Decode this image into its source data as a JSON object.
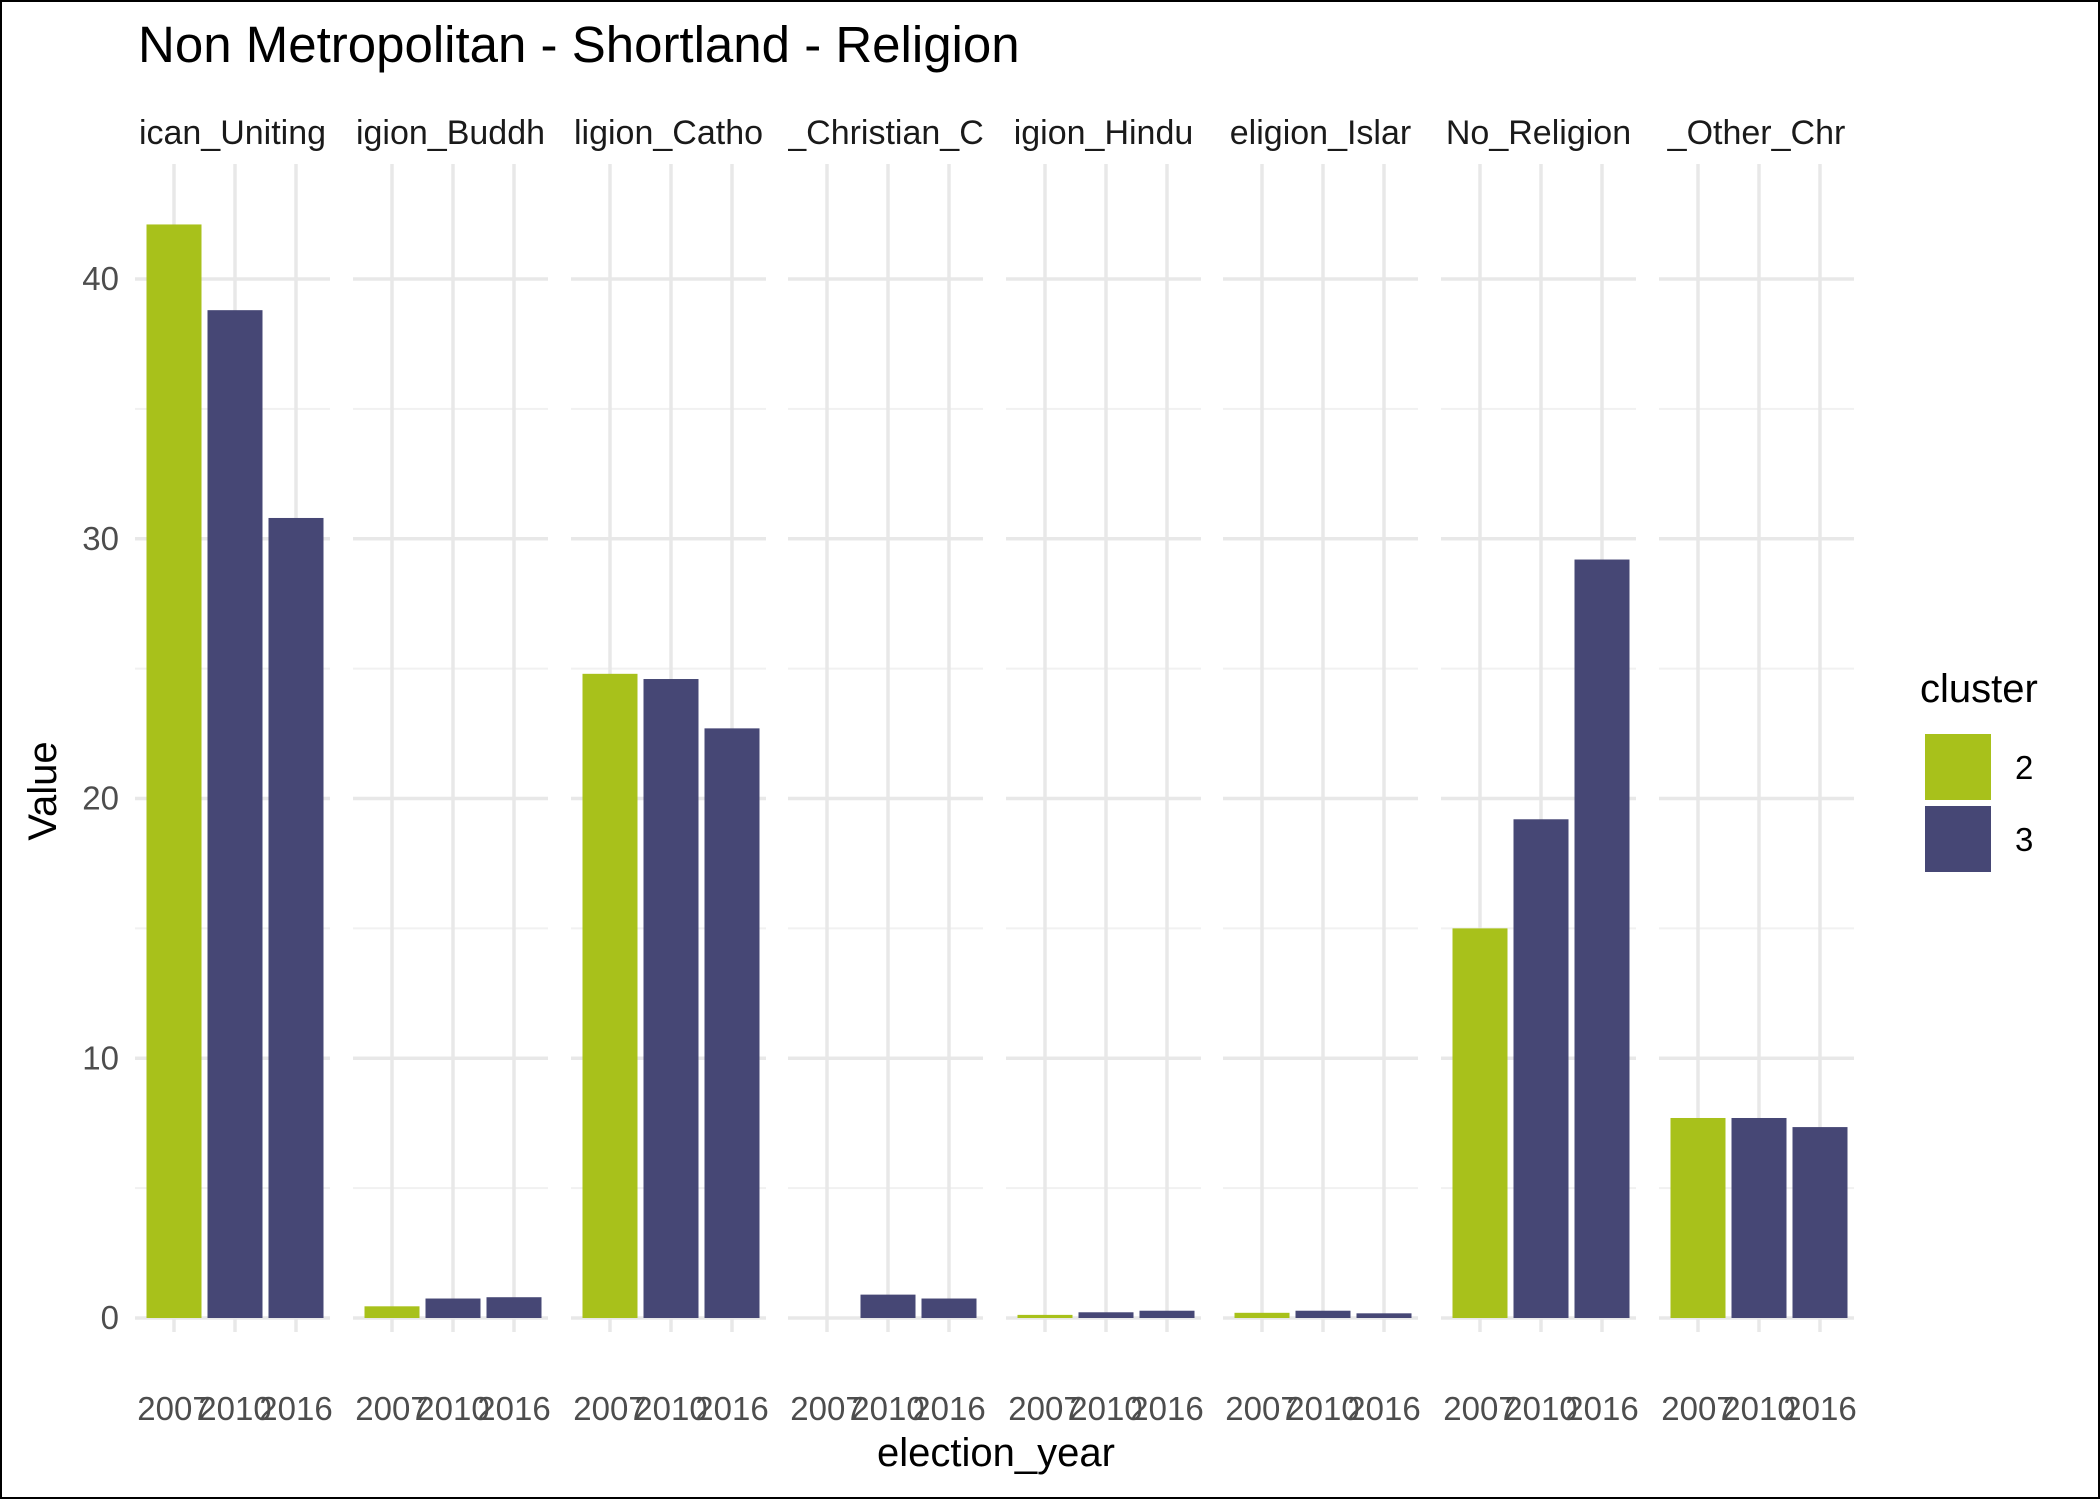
{
  "chart_data": {
    "type": "bar",
    "title": "Non Metropolitan - Shortland - Religion",
    "xlabel": "election_year",
    "ylabel": "Value",
    "ylim": [
      0,
      43.5
    ],
    "y_ticks": [
      0,
      10,
      20,
      30,
      40
    ],
    "grid": true,
    "legend": {
      "title": "cluster",
      "position": "right",
      "entries": [
        {
          "label": "2",
          "color": "#a8c11b"
        },
        {
          "label": "3",
          "color": "#464775"
        }
      ]
    },
    "x_categories": [
      "2007",
      "2010",
      "2016"
    ],
    "facets": [
      {
        "label": "ican_Uniting",
        "bars": [
          {
            "x": "2007",
            "value": 42.1,
            "cluster": "2"
          },
          {
            "x": "2010",
            "value": 38.8,
            "cluster": "3"
          },
          {
            "x": "2016",
            "value": 30.8,
            "cluster": "3"
          }
        ]
      },
      {
        "label": "igion_Buddh",
        "bars": [
          {
            "x": "2007",
            "value": 0.45,
            "cluster": "2"
          },
          {
            "x": "2010",
            "value": 0.75,
            "cluster": "3"
          },
          {
            "x": "2016",
            "value": 0.8,
            "cluster": "3"
          }
        ]
      },
      {
        "label": "ligion_Catho",
        "bars": [
          {
            "x": "2007",
            "value": 24.8,
            "cluster": "2"
          },
          {
            "x": "2010",
            "value": 24.6,
            "cluster": "3"
          },
          {
            "x": "2016",
            "value": 22.7,
            "cluster": "3"
          }
        ]
      },
      {
        "label": "_Christian_C",
        "bars": [
          {
            "x": "2007",
            "value": 0.0,
            "cluster": "2"
          },
          {
            "x": "2010",
            "value": 0.9,
            "cluster": "3"
          },
          {
            "x": "2016",
            "value": 0.75,
            "cluster": "3"
          }
        ]
      },
      {
        "label": "igion_Hindu",
        "bars": [
          {
            "x": "2007",
            "value": 0.12,
            "cluster": "2"
          },
          {
            "x": "2010",
            "value": 0.22,
            "cluster": "3"
          },
          {
            "x": "2016",
            "value": 0.28,
            "cluster": "3"
          }
        ]
      },
      {
        "label": "eligion_Islar",
        "bars": [
          {
            "x": "2007",
            "value": 0.2,
            "cluster": "2"
          },
          {
            "x": "2010",
            "value": 0.28,
            "cluster": "3"
          },
          {
            "x": "2016",
            "value": 0.18,
            "cluster": "3"
          }
        ]
      },
      {
        "label": "No_Religion",
        "bars": [
          {
            "x": "2007",
            "value": 15.0,
            "cluster": "2"
          },
          {
            "x": "2010",
            "value": 19.2,
            "cluster": "3"
          },
          {
            "x": "2016",
            "value": 29.2,
            "cluster": "3"
          }
        ]
      },
      {
        "label": "_Other_Chr",
        "bars": [
          {
            "x": "2007",
            "value": 7.7,
            "cluster": "2"
          },
          {
            "x": "2010",
            "value": 7.7,
            "cluster": "3"
          },
          {
            "x": "2016",
            "value": 7.35,
            "cluster": "3"
          }
        ]
      }
    ]
  }
}
